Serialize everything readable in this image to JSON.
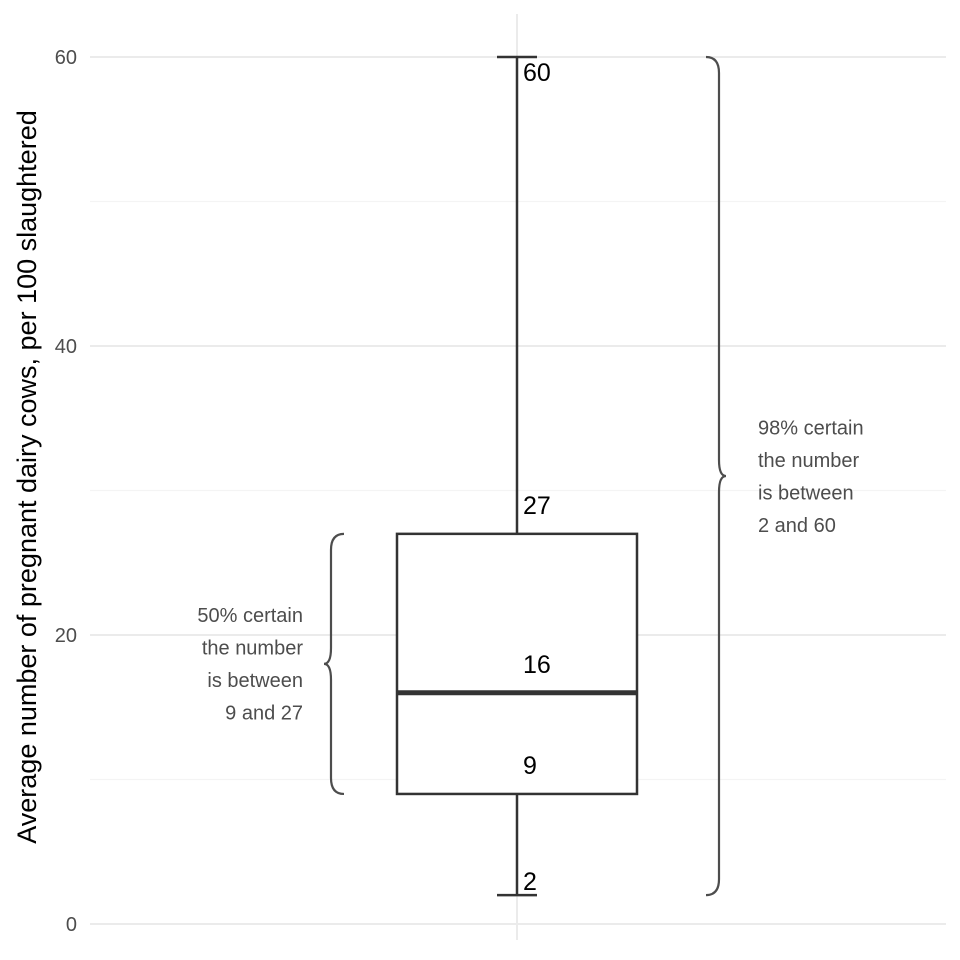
{
  "chart_data": {
    "type": "box",
    "title": "",
    "xlabel": "",
    "ylabel": "Average number of pregnant dairy cows, per 100 slaughtered",
    "ylim": [
      0,
      60
    ],
    "y_ticks": [
      0,
      20,
      40,
      60
    ],
    "y_minor_ticks": [
      10,
      30,
      50
    ],
    "grid": true,
    "box": {
      "whisker_low": 2,
      "q1": 9,
      "median": 16,
      "q3": 27,
      "whisker_high": 60
    },
    "value_labels": [
      "60",
      "27",
      "16",
      "9",
      "2"
    ],
    "annotations": [
      {
        "name": "range-50",
        "from": 9,
        "to": 27,
        "side": "left",
        "lines": [
          "50% certain",
          "the number",
          "is between",
          "9 and 27"
        ]
      },
      {
        "name": "range-98",
        "from": 2,
        "to": 60,
        "side": "right",
        "lines": [
          "98% certain",
          "the number",
          "is between",
          "2 and 60"
        ]
      }
    ],
    "colors": {
      "box_stroke": "#333333",
      "median": "#333333",
      "grid_major": "#ebebeb",
      "grid_minor": "#f4f4f4",
      "brace": "#4d4d4d"
    }
  }
}
